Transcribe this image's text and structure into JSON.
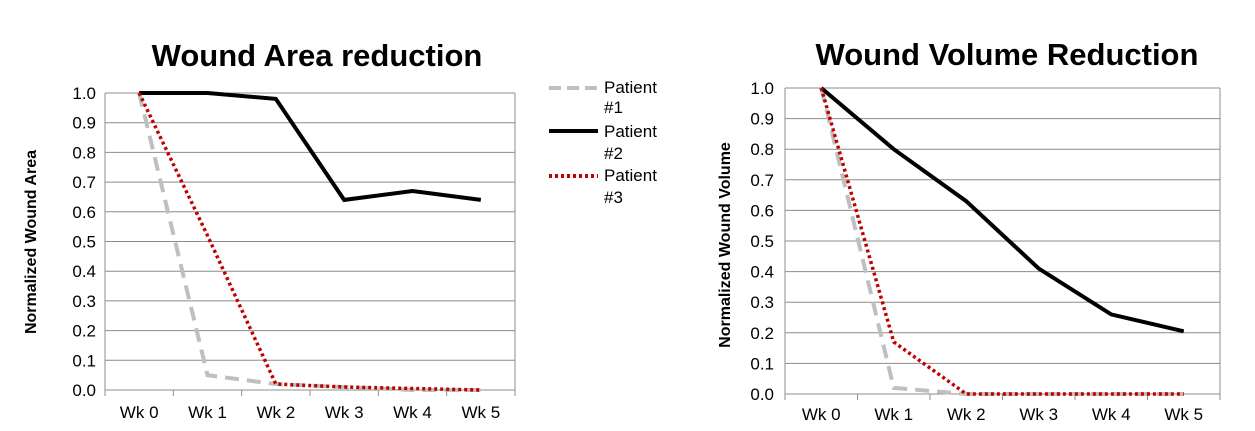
{
  "colors": {
    "patient1": "#bfbfbf",
    "patient2": "#000000",
    "patient3": "#c00000",
    "grid": "#8c8c8c"
  },
  "legend": [
    {
      "line1": "Patient",
      "line2": "#1",
      "style": "dashed",
      "color": "#bfbfbf"
    },
    {
      "line1": "Patient",
      "line2": "#2",
      "style": "solid",
      "color": "#000000"
    },
    {
      "line1": "Patient",
      "line2": "#3",
      "style": "dotted",
      "color": "#c00000"
    }
  ],
  "chart_data": [
    {
      "type": "line",
      "title": "Wound Area reduction",
      "xlabel": "",
      "ylabel": "Normalized Wound Area",
      "categories": [
        "Wk 0",
        "Wk 1",
        "Wk 2",
        "Wk 3",
        "Wk 4",
        "Wk 5"
      ],
      "ylim": [
        0,
        1
      ],
      "yticks": [
        "0.0",
        "0.1",
        "0.2",
        "0.3",
        "0.4",
        "0.5",
        "0.6",
        "0.7",
        "0.8",
        "0.9",
        "1.0"
      ],
      "grid": true,
      "legend_position": "right",
      "series": [
        {
          "name": "Patient #1",
          "style": "dashed",
          "color": "#bfbfbf",
          "values": [
            1.0,
            0.05,
            0.02,
            0.01,
            0.0,
            0.0
          ]
        },
        {
          "name": "Patient #2",
          "style": "solid",
          "color": "#000000",
          "values": [
            1.0,
            1.0,
            0.98,
            0.64,
            0.67,
            0.64
          ]
        },
        {
          "name": "Patient #3",
          "style": "dotted",
          "color": "#c00000",
          "values": [
            1.0,
            0.52,
            0.02,
            0.01,
            0.005,
            0.0
          ]
        }
      ]
    },
    {
      "type": "line",
      "title": "Wound Volume Reduction",
      "xlabel": "",
      "ylabel": "Normalized Wound Volume",
      "categories": [
        "Wk 0",
        "Wk 1",
        "Wk 2",
        "Wk 3",
        "Wk 4",
        "Wk 5"
      ],
      "ylim": [
        0,
        1
      ],
      "yticks": [
        "0.0",
        "0.1",
        "0.2",
        "0.3",
        "0.4",
        "0.5",
        "0.6",
        "0.7",
        "0.8",
        "0.9",
        "1.0"
      ],
      "grid": true,
      "series": [
        {
          "name": "Patient #1",
          "style": "dashed",
          "color": "#bfbfbf",
          "values": [
            1.0,
            0.02,
            0.0,
            0.0,
            0.0,
            0.0
          ]
        },
        {
          "name": "Patient #2",
          "style": "solid",
          "color": "#000000",
          "values": [
            1.0,
            0.8,
            0.63,
            0.41,
            0.26,
            0.205
          ]
        },
        {
          "name": "Patient #3",
          "style": "dotted",
          "color": "#c00000",
          "values": [
            1.0,
            0.17,
            0.0,
            0.0,
            0.0,
            0.0
          ]
        }
      ]
    }
  ]
}
